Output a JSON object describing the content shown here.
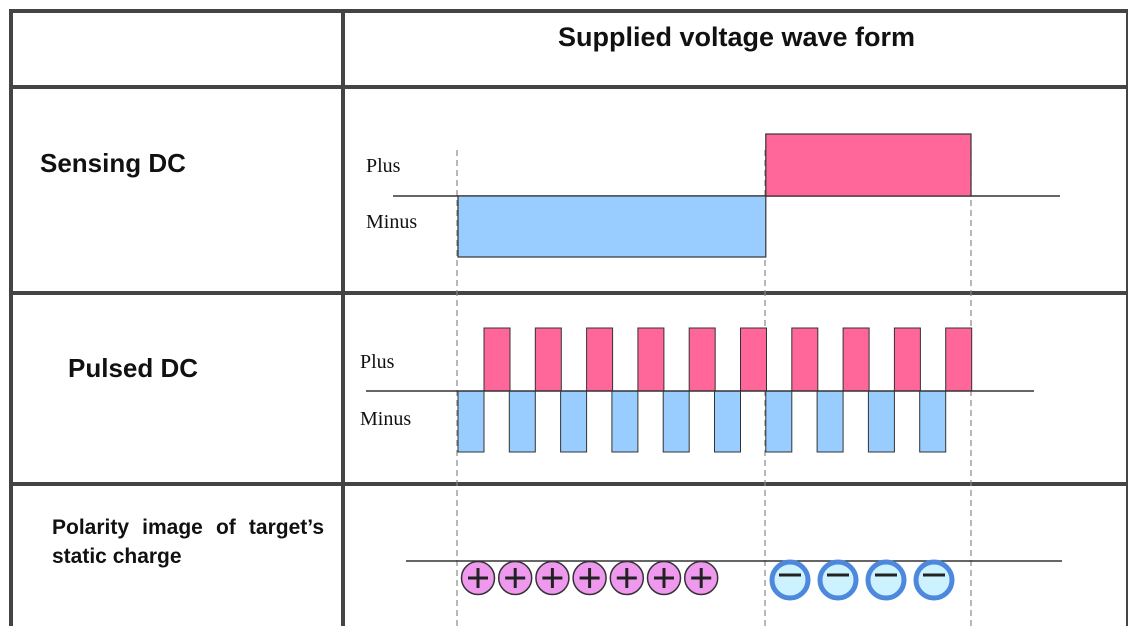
{
  "table": {
    "header": "Supplied voltage wave form",
    "rows": [
      {
        "label": "Sensing DC",
        "plus_label": "Plus",
        "minus_label": "Minus"
      },
      {
        "label": "Pulsed DC",
        "plus_label": "Plus",
        "minus_label": "Minus"
      },
      {
        "label": "Polarity image of target’s static charge"
      }
    ]
  },
  "waveforms": {
    "sensing_dc": {
      "minus_duration_fraction": 0.6,
      "plus_duration_fraction": 0.4
    },
    "pulsed_dc": {
      "plus_pulse_count": 10,
      "minus_pulse_count": 10
    },
    "polarity": {
      "plus_count": 7,
      "minus_count": 4,
      "plus_symbol": "+",
      "minus_symbol": "−"
    }
  },
  "colors": {
    "plus": "#ff6699",
    "minus": "#99ccff",
    "plus_charge_fill": "#ee99ee",
    "minus_charge_fill": "#ccf2ff",
    "minus_charge_ring": "#4d88dd",
    "border": "#444444",
    "guide": "#888888"
  }
}
